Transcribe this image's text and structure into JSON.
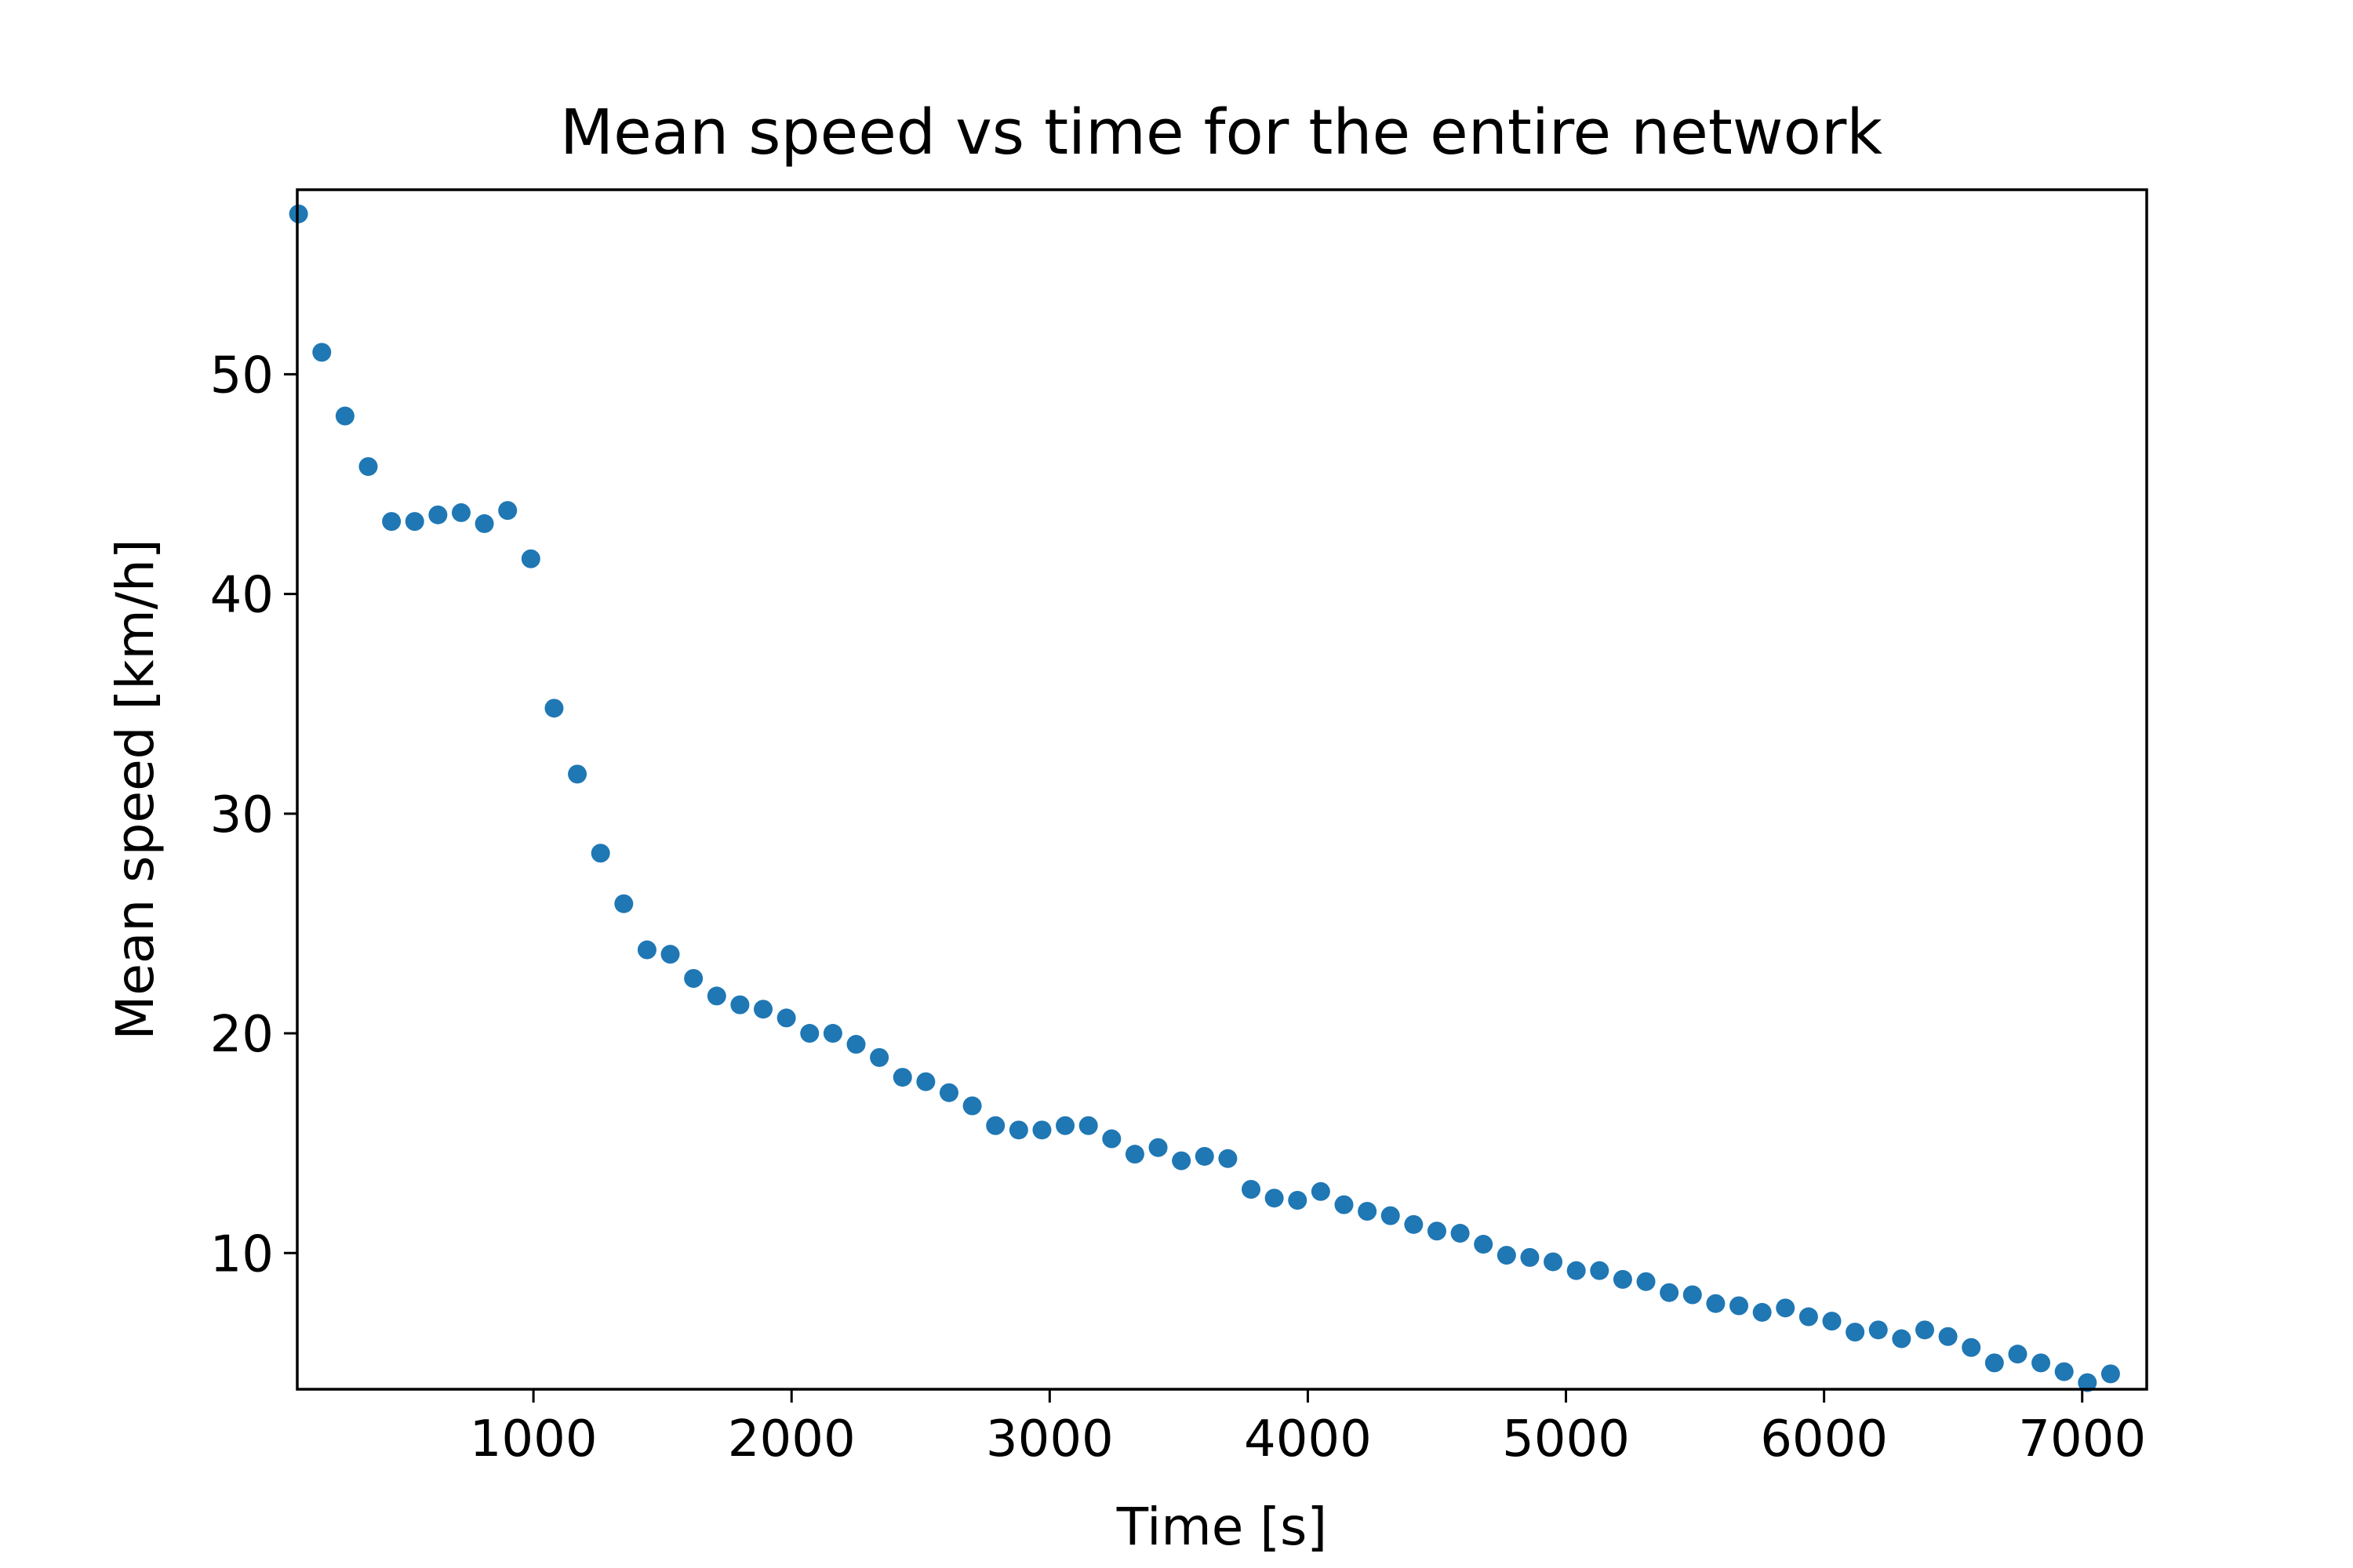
{
  "chart_data": {
    "type": "scatter",
    "title": "Mean speed vs time for the entire network",
    "xlabel": "Time [s]",
    "ylabel": "Mean speed [km/h]",
    "xlim": [
      85,
      7250
    ],
    "ylim": [
      3.8,
      58.4
    ],
    "x_ticks": [
      1000,
      2000,
      3000,
      4000,
      5000,
      6000,
      7000
    ],
    "x_tick_labels": [
      "1000",
      "2000",
      "3000",
      "4000",
      "5000",
      "6000",
      "7000"
    ],
    "y_ticks": [
      10,
      20,
      30,
      40,
      50
    ],
    "y_tick_labels": [
      "10",
      "20",
      "30",
      "40",
      "50"
    ],
    "grid": false,
    "marker_color": "#1f77b4",
    "series": [
      {
        "x": [
          90,
          180,
          270,
          360,
          450,
          540,
          630,
          720,
          810,
          900,
          990,
          1080,
          1170,
          1260,
          1350,
          1440,
          1530,
          1620,
          1710,
          1800,
          1890,
          1980,
          2070,
          2160,
          2250,
          2340,
          2430,
          2520,
          2610,
          2700,
          2790,
          2880,
          2970,
          3060,
          3150,
          3240,
          3330,
          3420,
          3510,
          3600,
          3690,
          3780,
          3870,
          3960,
          4050,
          4140,
          4230,
          4320,
          4410,
          4500,
          4590,
          4680,
          4770,
          4860,
          4950,
          5040,
          5130,
          5220,
          5310,
          5400,
          5490,
          5580,
          5670,
          5760,
          5850,
          5940,
          6030,
          6120,
          6210,
          6300,
          6390,
          6480,
          6570,
          6660,
          6750,
          6840,
          6930,
          7020,
          7110
        ],
        "y": [
          57.3,
          51.0,
          48.1,
          45.8,
          43.3,
          43.3,
          43.6,
          43.7,
          43.2,
          43.8,
          41.6,
          34.8,
          31.8,
          28.2,
          25.9,
          23.8,
          23.6,
          22.5,
          21.7,
          21.3,
          21.1,
          20.7,
          20.0,
          20.0,
          19.5,
          18.9,
          18.0,
          17.8,
          17.3,
          16.7,
          15.8,
          15.6,
          15.6,
          15.8,
          15.8,
          15.2,
          14.5,
          14.8,
          14.2,
          14.4,
          14.3,
          12.9,
          12.5,
          12.4,
          12.8,
          12.2,
          11.9,
          11.7,
          11.3,
          11.0,
          10.9,
          10.4,
          9.9,
          9.8,
          9.6,
          9.2,
          9.2,
          8.8,
          8.7,
          8.2,
          8.1,
          7.7,
          7.6,
          7.3,
          7.5,
          7.1,
          6.9,
          6.4,
          6.5,
          6.1,
          6.5,
          6.2,
          5.7,
          5.0,
          5.4,
          5.0,
          4.6,
          4.1,
          4.5
        ]
      }
    ]
  }
}
